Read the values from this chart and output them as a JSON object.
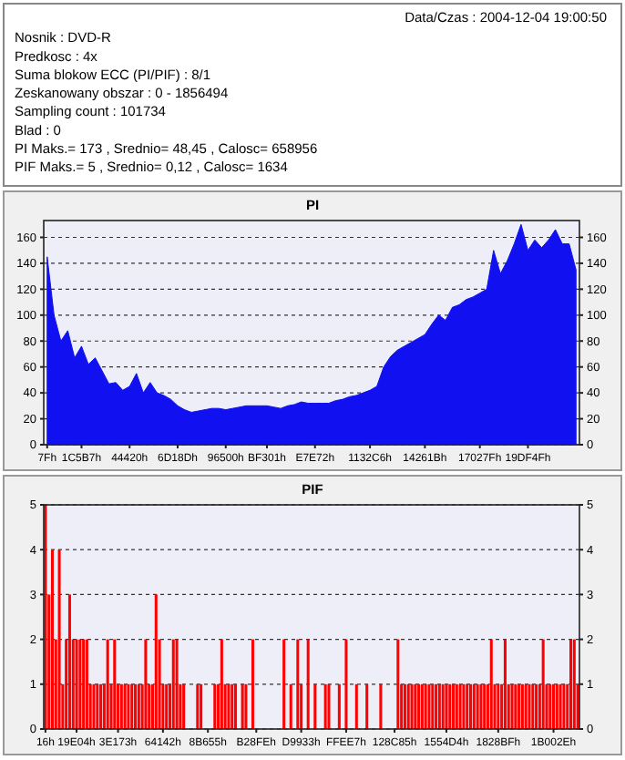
{
  "chart_data": [
    {
      "type": "other",
      "title": "Data/Czas : 2004-12-04 19:00:50",
      "annotations": [
        "Nosnik : DVD-R",
        "Predkosc : 4x",
        "Suma blokow ECC (PI/PIF) : 8/1",
        "Zeskanowany obszar : 0 - 1856494",
        "Sampling count : 101734",
        "Blad : 0",
        "PI Maks.= 173 , Srednio= 48,45 , Calosc= 658956",
        "PIF Maks.= 5 , Srednio= 0,12 , Calosc= 1634"
      ]
    },
    {
      "type": "area",
      "title": "PI",
      "grid": "y",
      "line_style": "dashed",
      "categories": [
        "7Fh",
        null,
        null,
        null,
        null,
        "1C5B7h",
        null,
        null,
        null,
        null,
        null,
        null,
        "44420h",
        null,
        null,
        null,
        null,
        null,
        null,
        "6D18Dh",
        null,
        null,
        null,
        null,
        null,
        null,
        "96500h",
        null,
        null,
        null,
        null,
        null,
        "BF301h",
        null,
        null,
        null,
        null,
        null,
        null,
        "E7E72h",
        null,
        null,
        null,
        null,
        null,
        null,
        null,
        "1132C6h",
        null,
        null,
        null,
        null,
        null,
        null,
        null,
        "14261Bh",
        null,
        null,
        null,
        null,
        null,
        null,
        null,
        "17027Fh",
        null,
        null,
        null,
        null,
        null,
        null,
        "19DF4Fh",
        null,
        null,
        null,
        null,
        null,
        null,
        null
      ],
      "ylim": [
        0,
        173
      ],
      "yticks": [
        0,
        20,
        40,
        60,
        80,
        100,
        120,
        140,
        160
      ],
      "y2lim": [
        0,
        173
      ],
      "y2ticks": [
        0,
        20,
        40,
        60,
        80,
        100,
        120,
        140,
        160
      ],
      "series": [
        {
          "color": "#1010f0",
          "values": [
            145,
            100,
            80,
            88,
            67,
            76,
            62,
            67,
            57,
            47,
            48,
            42,
            45,
            55,
            40,
            48,
            40,
            38,
            35,
            30,
            27,
            25,
            26,
            27,
            28,
            28,
            27,
            28,
            29,
            30,
            30,
            30,
            30,
            29,
            28,
            30,
            31,
            33,
            32,
            32,
            32,
            32,
            34,
            35,
            37,
            38,
            40,
            42,
            45,
            60,
            68,
            73,
            76,
            79,
            82,
            85,
            93,
            100,
            96,
            106,
            108,
            112,
            114,
            117,
            120,
            150,
            132,
            142,
            155,
            170,
            150,
            158,
            152,
            158,
            166,
            155,
            155,
            135
          ]
        }
      ]
    },
    {
      "type": "bar",
      "title": "PIF",
      "grid": "y",
      "line_style": "dashed",
      "categories": [
        "16h",
        null,
        null,
        null,
        null,
        null,
        null,
        null,
        null,
        "19E04h",
        null,
        null,
        null,
        null,
        null,
        null,
        null,
        null,
        null,
        null,
        null,
        "3E173h",
        null,
        null,
        null,
        null,
        null,
        null,
        null,
        null,
        null,
        null,
        null,
        null,
        "64142h",
        null,
        null,
        null,
        null,
        null,
        null,
        null,
        null,
        null,
        null,
        null,
        null,
        "8B655h",
        null,
        null,
        null,
        null,
        null,
        null,
        null,
        null,
        null,
        null,
        null,
        null,
        null,
        "B28FEh",
        null,
        null,
        null,
        null,
        null,
        null,
        null,
        null,
        null,
        null,
        null,
        null,
        "D9933h",
        null,
        null,
        null,
        null,
        null,
        null,
        null,
        null,
        null,
        null,
        null,
        null,
        "FFEE7h",
        null,
        null,
        null,
        null,
        null,
        null,
        null,
        null,
        null,
        null,
        null,
        null,
        null,
        "128C85h",
        null,
        null,
        null,
        null,
        null,
        null,
        null,
        null,
        null,
        null,
        null,
        null,
        null,
        null,
        "1554D4h",
        null,
        null,
        null,
        null,
        null,
        null,
        null,
        null,
        null,
        null,
        null,
        null,
        null,
        null,
        "1828BFh",
        null,
        null,
        null,
        null,
        null,
        null,
        null,
        null,
        null,
        null,
        null,
        null,
        null,
        null,
        null,
        "1B002Eh",
        null,
        null,
        null,
        null,
        null,
        null,
        null
      ],
      "ylim": [
        0,
        5
      ],
      "yticks": [
        0,
        1,
        2,
        3,
        4,
        5
      ],
      "y2lim": [
        0,
        5
      ],
      "y2ticks": [
        0,
        1,
        2,
        3,
        4,
        5
      ],
      "series": [
        {
          "color": "#ff0000",
          "values": [
            5,
            3,
            4,
            2,
            4,
            1,
            2,
            3,
            2,
            2,
            2,
            2,
            2,
            1,
            1,
            1,
            1,
            1,
            2,
            1,
            2,
            1,
            1,
            1,
            1,
            1,
            1,
            1,
            1,
            2,
            1,
            1,
            3,
            2,
            1,
            1,
            1,
            2,
            2,
            1,
            1,
            0,
            0,
            0,
            1,
            1,
            0,
            0,
            0,
            1,
            1,
            2,
            1,
            1,
            1,
            1,
            0,
            1,
            1,
            0,
            2,
            0,
            0,
            0,
            0,
            0,
            0,
            0,
            0,
            2,
            0,
            1,
            0,
            2,
            1,
            0,
            2,
            0,
            1,
            0,
            0,
            1,
            1,
            0,
            0,
            1,
            0,
            2,
            0,
            0,
            1,
            0,
            0,
            1,
            0,
            0,
            0,
            1,
            0,
            0,
            0,
            0,
            2,
            1,
            1,
            1,
            1,
            1,
            1,
            1,
            1,
            1,
            1,
            1,
            1,
            1,
            1,
            1,
            1,
            1,
            1,
            1,
            1,
            1,
            1,
            1,
            1,
            1,
            1,
            2,
            1,
            1,
            1,
            2,
            1,
            1,
            1,
            1,
            1,
            1,
            1,
            1,
            1,
            1,
            2,
            1,
            1,
            1,
            1,
            1,
            1,
            1,
            2,
            2,
            1
          ]
        }
      ]
    }
  ]
}
